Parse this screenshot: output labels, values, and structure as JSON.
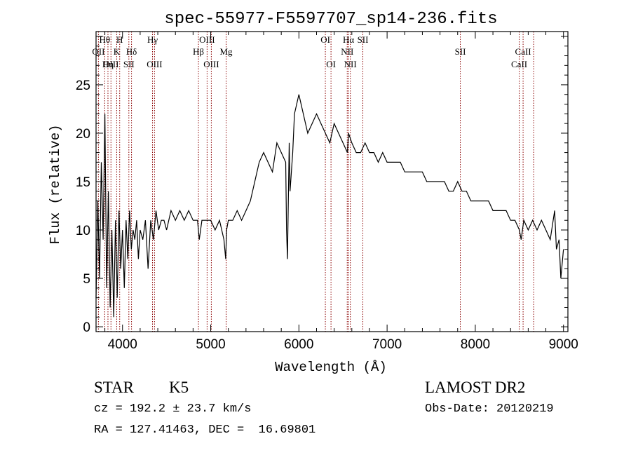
{
  "chart_data": {
    "type": "line",
    "title": "spec-55977-F5597707_sp14-236.fits",
    "xlabel": "Wavelength (Å)",
    "ylabel": "Flux (relative)",
    "xlim": [
      3700,
      9050
    ],
    "ylim": [
      -0.5,
      30.5
    ],
    "xticks": [
      4000,
      5000,
      6000,
      7000,
      8000,
      9000
    ],
    "yticks": [
      0,
      5,
      10,
      15,
      20,
      25
    ],
    "grid": false,
    "line_color": "#000000",
    "marker_color": "#8b0000",
    "series": [
      {
        "x": [
          3700,
          3720,
          3740,
          3760,
          3780,
          3800,
          3820,
          3840,
          3860,
          3880,
          3900,
          3920,
          3940,
          3960,
          3980,
          4000,
          4020,
          4040,
          4060,
          4080,
          4100,
          4120,
          4140,
          4160,
          4180,
          4200,
          4230,
          4260,
          4290,
          4320,
          4350,
          4380,
          4410,
          4440,
          4470,
          4500,
          4550,
          4600,
          4650,
          4700,
          4750,
          4800,
          4850,
          4870,
          4900,
          4950,
          5000,
          5050,
          5100,
          5150,
          5170,
          5180,
          5200,
          5250,
          5300,
          5350,
          5400,
          5450,
          5500,
          5550,
          5600,
          5650,
          5700,
          5750,
          5800,
          5850,
          5860,
          5870,
          5890,
          5900,
          5930,
          5950,
          6000,
          6050,
          6100,
          6150,
          6200,
          6250,
          6300,
          6350,
          6400,
          6450,
          6500,
          6550,
          6563,
          6600,
          6650,
          6700,
          6750,
          6800,
          6850,
          6900,
          6950,
          7000,
          7050,
          7100,
          7150,
          7200,
          7250,
          7300,
          7350,
          7400,
          7450,
          7500,
          7550,
          7600,
          7650,
          7700,
          7750,
          7800,
          7850,
          7900,
          7950,
          8000,
          8050,
          8100,
          8150,
          8200,
          8250,
          8300,
          8350,
          8400,
          8450,
          8500,
          8520,
          8550,
          8600,
          8650,
          8700,
          8750,
          8800,
          8850,
          8900,
          8920,
          8950,
          8970,
          9000
        ],
        "y": [
          3,
          13,
          5,
          17,
          9,
          22,
          4,
          14,
          2,
          10,
          1,
          11,
          3,
          12,
          6,
          10,
          4,
          11,
          7,
          12,
          8,
          10,
          9,
          11,
          7,
          10,
          9,
          11,
          6,
          11,
          9,
          12,
          10,
          11,
          11,
          10,
          12,
          11,
          12,
          11,
          12,
          11,
          11,
          9,
          11,
          11,
          11,
          10,
          11,
          9,
          7,
          10,
          11,
          11,
          12,
          11,
          12,
          13,
          15,
          17,
          18,
          17,
          16,
          19,
          18,
          17,
          10,
          7,
          19,
          14,
          18,
          22,
          24,
          22,
          20,
          21,
          22,
          21,
          20,
          19,
          21,
          20,
          19,
          18,
          20,
          19,
          18,
          18,
          19,
          18,
          18,
          17,
          18,
          17,
          17,
          17,
          17,
          16,
          16,
          16,
          16,
          16,
          15,
          15,
          15,
          15,
          15,
          14,
          14,
          15,
          14,
          14,
          13,
          13,
          13,
          13,
          13,
          12,
          12,
          12,
          12,
          11,
          11,
          10,
          9,
          11,
          10,
          11,
          10,
          11,
          10,
          9,
          12,
          8,
          9,
          5,
          8
        ]
      }
    ],
    "lines": [
      {
        "label": "Hθ",
        "x": 3798,
        "row": 1
      },
      {
        "label": "OII",
        "x": 3727,
        "row": 2
      },
      {
        "label": "OIII",
        "x": 3869,
        "row": 3
      },
      {
        "label": "Hη",
        "x": 3835,
        "row": 3
      },
      {
        "label": "H",
        "x": 3968,
        "row": 1
      },
      {
        "label": "K",
        "x": 3934,
        "row": 2
      },
      {
        "label": "Hδ",
        "x": 4102,
        "row": 2
      },
      {
        "label": "SII",
        "x": 4072,
        "row": 3
      },
      {
        "label": "Hγ",
        "x": 4340,
        "row": 1
      },
      {
        "label": "OIII",
        "x": 4363,
        "row": 3
      },
      {
        "label": "OIII",
        "x": 4959,
        "row": 1
      },
      {
        "label": "Hβ",
        "x": 4861,
        "row": 2
      },
      {
        "label": "OIII",
        "x": 5007,
        "row": 3
      },
      {
        "label": "Mg",
        "x": 5175,
        "row": 2
      },
      {
        "label": "OI",
        "x": 6300,
        "row": 1
      },
      {
        "label": "OI",
        "x": 6364,
        "row": 3
      },
      {
        "label": "Hα",
        "x": 6563,
        "row": 1
      },
      {
        "label": "NII",
        "x": 6548,
        "row": 2
      },
      {
        "label": "NII",
        "x": 6583,
        "row": 3
      },
      {
        "label": "SII",
        "x": 6725,
        "row": 1
      },
      {
        "label": "SII",
        "x": 7830,
        "row": 2
      },
      {
        "label": "CaII",
        "x": 8542,
        "row": 2
      },
      {
        "label": "CaII",
        "x": 8498,
        "row": 3
      },
      {
        "label": "",
        "x": 8662,
        "row": 0
      }
    ]
  },
  "footer": {
    "object_type": "STAR",
    "subclass": "K5",
    "survey": "LAMOST DR2",
    "cz": "cz = 192.2 ± 23.7 km/s",
    "obs_date": "Obs-Date: 20120219",
    "coords": "RA = 127.41463, DEC =  16.69801"
  }
}
